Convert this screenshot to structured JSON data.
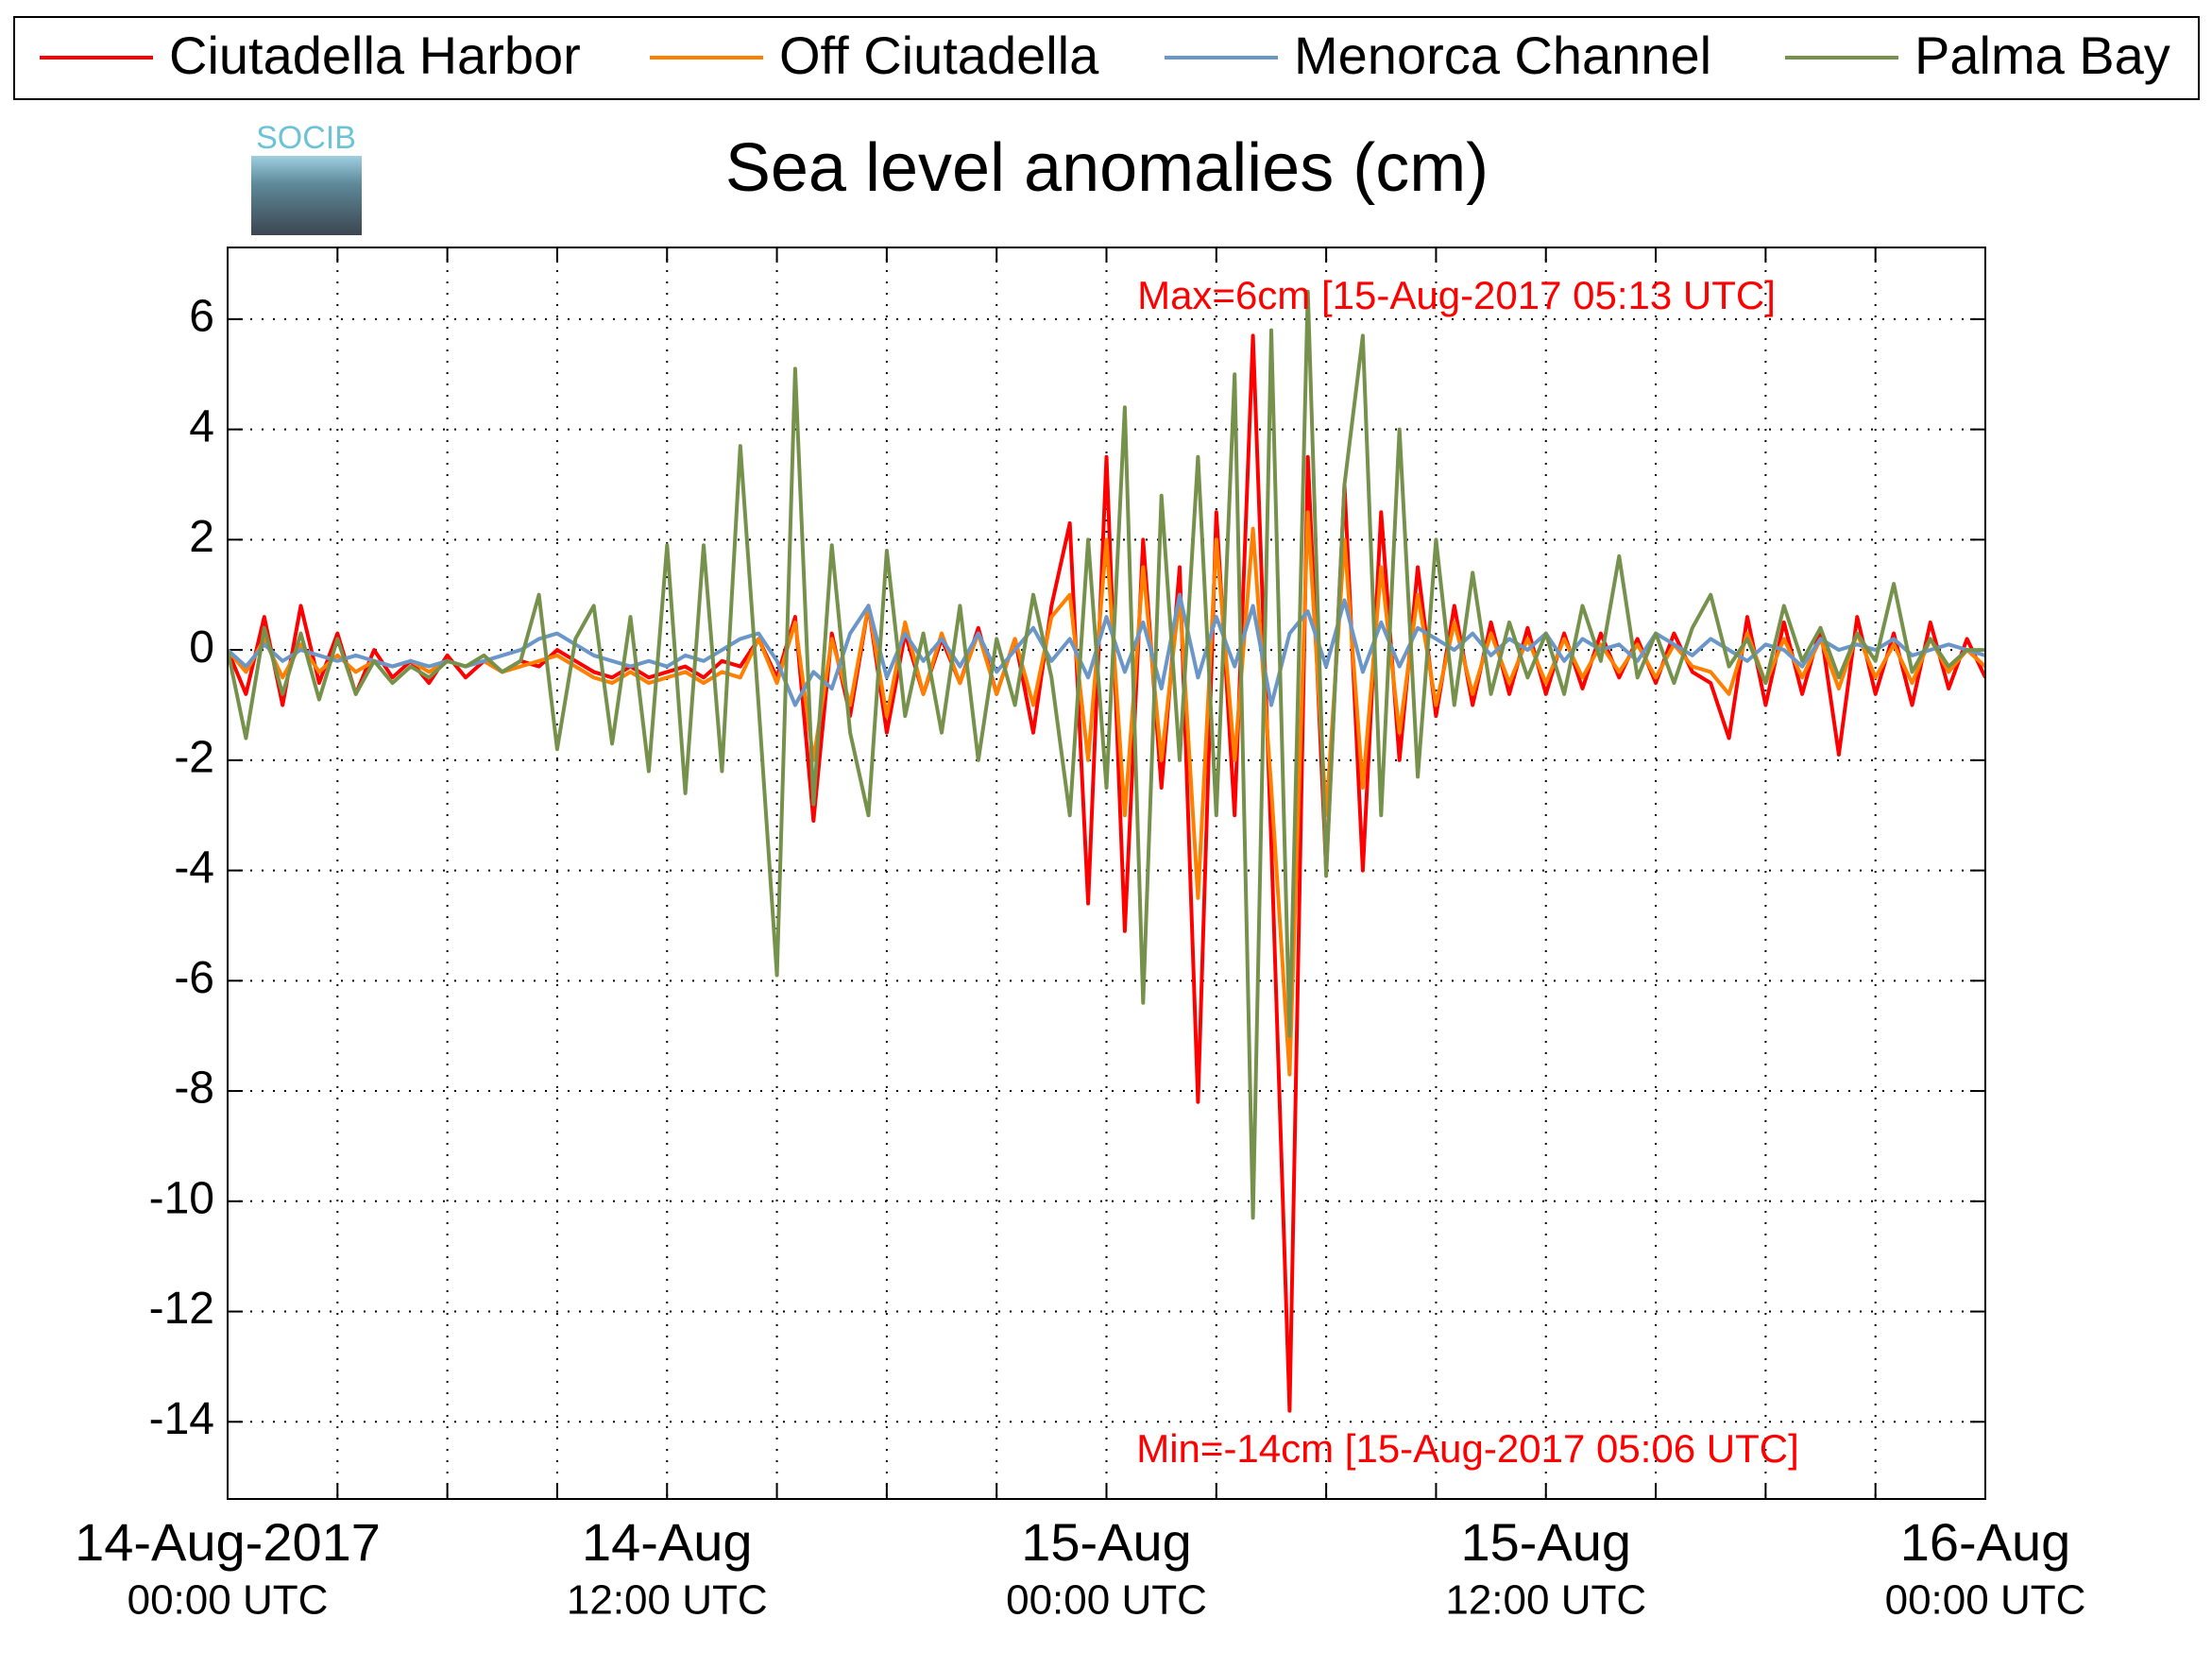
{
  "chart_data": {
    "type": "line",
    "title": "Sea level anomalies (cm)",
    "logo": "SOCIB",
    "annotations": [
      "Max=6cm [15-Aug-2017 05:13 UTC]",
      "Min=-14cm [15-Aug-2017 05:06 UTC]"
    ],
    "annotation_color": "#ff0000",
    "x": [
      "2017-08-14T00:00",
      "2017-08-14T00:30",
      "2017-08-14T01:00",
      "2017-08-14T01:30",
      "2017-08-14T02:00",
      "2017-08-14T02:30",
      "2017-08-14T03:00",
      "2017-08-14T03:30",
      "2017-08-14T04:00",
      "2017-08-14T04:30",
      "2017-08-14T05:00",
      "2017-08-14T05:30",
      "2017-08-14T06:00",
      "2017-08-14T06:30",
      "2017-08-14T07:00",
      "2017-08-14T07:30",
      "2017-08-14T08:00",
      "2017-08-14T08:30",
      "2017-08-14T09:00",
      "2017-08-14T09:30",
      "2017-08-14T10:00",
      "2017-08-14T10:30",
      "2017-08-14T11:00",
      "2017-08-14T11:30",
      "2017-08-14T12:00",
      "2017-08-14T12:30",
      "2017-08-14T13:00",
      "2017-08-14T13:30",
      "2017-08-14T14:00",
      "2017-08-14T14:30",
      "2017-08-14T15:00",
      "2017-08-14T15:30",
      "2017-08-14T16:00",
      "2017-08-14T16:30",
      "2017-08-14T17:00",
      "2017-08-14T17:30",
      "2017-08-14T18:00",
      "2017-08-14T18:30",
      "2017-08-14T19:00",
      "2017-08-14T19:30",
      "2017-08-14T20:00",
      "2017-08-14T20:30",
      "2017-08-14T21:00",
      "2017-08-14T21:30",
      "2017-08-14T22:00",
      "2017-08-14T22:30",
      "2017-08-14T23:00",
      "2017-08-14T23:30",
      "2017-08-15T00:00",
      "2017-08-15T00:30",
      "2017-08-15T01:00",
      "2017-08-15T01:30",
      "2017-08-15T02:00",
      "2017-08-15T02:30",
      "2017-08-15T03:00",
      "2017-08-15T03:30",
      "2017-08-15T04:00",
      "2017-08-15T04:30",
      "2017-08-15T05:00",
      "2017-08-15T05:30",
      "2017-08-15T06:00",
      "2017-08-15T06:30",
      "2017-08-15T07:00",
      "2017-08-15T07:30",
      "2017-08-15T08:00",
      "2017-08-15T08:30",
      "2017-08-15T09:00",
      "2017-08-15T09:30",
      "2017-08-15T10:00",
      "2017-08-15T10:30",
      "2017-08-15T11:00",
      "2017-08-15T11:30",
      "2017-08-15T12:00",
      "2017-08-15T12:30",
      "2017-08-15T13:00",
      "2017-08-15T13:30",
      "2017-08-15T14:00",
      "2017-08-15T14:30",
      "2017-08-15T15:00",
      "2017-08-15T15:30",
      "2017-08-15T16:00",
      "2017-08-15T16:30",
      "2017-08-15T17:00",
      "2017-08-15T17:30",
      "2017-08-15T18:00",
      "2017-08-15T18:30",
      "2017-08-15T19:00",
      "2017-08-15T19:30",
      "2017-08-15T20:00",
      "2017-08-15T20:30",
      "2017-08-15T21:00",
      "2017-08-15T21:30",
      "2017-08-15T22:00",
      "2017-08-15T22:30",
      "2017-08-15T23:00",
      "2017-08-15T23:30",
      "2017-08-16T00:00"
    ],
    "series": [
      {
        "name": "Ciutadella Harbor",
        "color": "#ff0000",
        "values": [
          0,
          -0.8,
          0.6,
          -1,
          0.8,
          -0.6,
          0.3,
          -0.8,
          0,
          -0.5,
          -0.2,
          -0.6,
          -0.1,
          -0.5,
          -0.2,
          -0.4,
          -0.2,
          -0.3,
          0,
          -0.2,
          -0.4,
          -0.5,
          -0.3,
          -0.5,
          -0.4,
          -0.3,
          -0.5,
          -0.2,
          -0.3,
          0.2,
          -0.5,
          0.6,
          -3.1,
          0.3,
          -1.2,
          0.8,
          -1.5,
          0.3,
          -0.8,
          0.2,
          -0.6,
          0.4,
          -0.8,
          0.2,
          -1.5,
          0.8,
          2.3,
          -4.6,
          3.5,
          -5.1,
          2,
          -2.5,
          1.5,
          -8.2,
          2.5,
          -3,
          5.7,
          -3.5,
          -13.8,
          3.5,
          -4,
          3,
          -4,
          2.5,
          -2,
          1.5,
          -1.2,
          0.8,
          -1,
          0.5,
          -0.8,
          0.4,
          -0.8,
          0.3,
          -0.7,
          0.3,
          -0.5,
          0.2,
          -0.6,
          0.3,
          -0.4,
          -0.6,
          -1.6,
          0.6,
          -1,
          0.5,
          -0.8,
          0.4,
          -1.9,
          0.6,
          -0.8,
          0.3,
          -1,
          0.5,
          -0.7,
          0.2,
          -0.5
        ]
      },
      {
        "name": "Off Ciutadella",
        "color": "#ff8000",
        "values": [
          0,
          -0.4,
          0.2,
          -0.5,
          0.1,
          -0.4,
          -0.1,
          -0.4,
          -0.2,
          -0.3,
          -0.2,
          -0.4,
          -0.2,
          -0.3,
          -0.2,
          -0.4,
          -0.3,
          -0.2,
          -0.1,
          -0.3,
          -0.5,
          -0.6,
          -0.4,
          -0.6,
          -0.5,
          -0.4,
          -0.6,
          -0.4,
          -0.5,
          0.2,
          -0.6,
          0.5,
          -2,
          0.2,
          -1,
          0.8,
          -1.2,
          0.5,
          -0.8,
          0.3,
          -0.6,
          0.3,
          -0.8,
          0.2,
          -1,
          0.6,
          1,
          -2,
          2,
          -3,
          1.5,
          -2,
          1,
          -4.5,
          2,
          -2,
          2.2,
          -2.5,
          -7.7,
          2.5,
          -3,
          2,
          -2.5,
          1.5,
          -1.5,
          1,
          -1,
          0.5,
          -0.8,
          0.3,
          -0.6,
          0.2,
          -0.6,
          0.2,
          -0.5,
          0.1,
          -0.4,
          0.1,
          -0.5,
          0.1,
          -0.3,
          -0.4,
          -0.8,
          0.3,
          -0.6,
          0.2,
          -0.5,
          0.2,
          -0.7,
          0.3,
          -0.5,
          0.1,
          -0.6,
          0.2,
          -0.4,
          0,
          -0.3
        ]
      },
      {
        "name": "Menorca Channel",
        "color": "#6a96c8",
        "values": [
          0,
          -0.3,
          0.1,
          -0.2,
          0,
          -0.1,
          -0.2,
          -0.1,
          -0.2,
          -0.3,
          -0.2,
          -0.3,
          -0.2,
          -0.3,
          -0.2,
          -0.1,
          0,
          0.2,
          0.3,
          0.1,
          -0.1,
          -0.2,
          -0.3,
          -0.2,
          -0.3,
          -0.1,
          -0.2,
          0,
          0.2,
          0.3,
          -0.2,
          -1,
          -0.4,
          -0.7,
          0.3,
          0.8,
          -0.5,
          0.3,
          -0.2,
          0.2,
          -0.3,
          0.3,
          -0.4,
          0,
          0.4,
          -0.2,
          0.2,
          -0.5,
          0.6,
          -0.4,
          0.5,
          -0.7,
          1,
          -0.5,
          0.6,
          -0.3,
          0.8,
          -1,
          0.3,
          0.7,
          -0.3,
          0.9,
          -0.4,
          0.5,
          -0.3,
          0.4,
          0.2,
          0,
          0.3,
          -0.1,
          0.2,
          0,
          0.3,
          -0.2,
          0.2,
          0,
          0.1,
          -0.2,
          0.3,
          0.1,
          -0.1,
          0.2,
          0,
          -0.2,
          0.1,
          0,
          -0.3,
          0.2,
          0,
          0.1,
          0,
          0.2,
          -0.1,
          0,
          0.1,
          0,
          -0.1
        ]
      },
      {
        "name": "Palma Bay",
        "color": "#76914b",
        "values": [
          0,
          -1.6,
          0.4,
          -0.8,
          0.3,
          -0.9,
          0.2,
          -0.8,
          -0.2,
          -0.6,
          -0.3,
          -0.5,
          -0.2,
          -0.3,
          -0.1,
          -0.4,
          -0.2,
          1,
          -1.8,
          0.2,
          0.8,
          -1.7,
          0.6,
          -2.2,
          1.9,
          -2.6,
          1.9,
          -2.2,
          3.7,
          -1,
          -5.9,
          5.1,
          -2.8,
          1.9,
          -1.5,
          -3,
          1.8,
          -1.2,
          0.3,
          -1.5,
          0.8,
          -2,
          0.2,
          -1,
          1,
          -0.5,
          -3,
          2,
          -2.5,
          4.4,
          -6.4,
          2.8,
          -2,
          3.5,
          -3,
          5,
          -10.3,
          5.8,
          -7,
          6.5,
          -4.1,
          3,
          5.7,
          -3,
          4,
          -2.3,
          2,
          -1,
          1.4,
          -0.8,
          0.5,
          -0.5,
          0.3,
          -0.8,
          0.8,
          -0.2,
          1.7,
          -0.5,
          0.3,
          -0.6,
          0.4,
          1,
          -0.3,
          0.2,
          -0.6,
          0.8,
          -0.2,
          0.4,
          -0.5,
          0.3,
          -0.2,
          1.2,
          -0.4,
          0.2,
          -0.3,
          0,
          0
        ]
      }
    ],
    "xlim": [
      "2017-08-14T00:00",
      "2017-08-16T00:00"
    ],
    "xticks": [
      {
        "value": "2017-08-14T00:00",
        "label": [
          "14-Aug-2017",
          "00:00 UTC"
        ]
      },
      {
        "value": "2017-08-14T12:00",
        "label": [
          "14-Aug",
          "12:00 UTC"
        ]
      },
      {
        "value": "2017-08-15T00:00",
        "label": [
          "15-Aug",
          "00:00 UTC"
        ]
      },
      {
        "value": "2017-08-15T12:00",
        "label": [
          "15-Aug",
          "12:00 UTC"
        ]
      },
      {
        "value": "2017-08-16T00:00",
        "label": [
          "16-Aug",
          "00:00 UTC"
        ]
      }
    ],
    "xminorticks": [
      "2017-08-14T03:00",
      "2017-08-14T06:00",
      "2017-08-14T09:00",
      "2017-08-14T15:00",
      "2017-08-14T18:00",
      "2017-08-14T21:00",
      "2017-08-15T03:00",
      "2017-08-15T06:00",
      "2017-08-15T09:00",
      "2017-08-15T15:00",
      "2017-08-15T18:00",
      "2017-08-15T21:00"
    ],
    "ylim": [
      -15.4,
      7.3
    ],
    "yticks": [
      -14,
      -12,
      -10,
      -8,
      -6,
      -4,
      -2,
      0,
      2,
      4,
      6
    ],
    "grid": true,
    "legend": "top"
  }
}
